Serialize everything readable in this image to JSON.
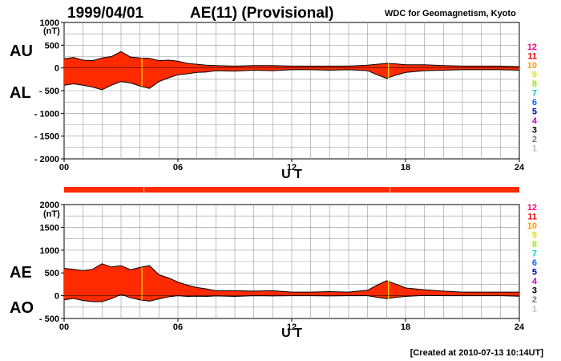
{
  "header": {
    "date": "1999/04/01",
    "title": "AE(11) (Provisional)",
    "source": "WDC for Geomagnetism, Kyoto"
  },
  "footer": {
    "created": "[Created at 2010-07-13 10:14UT]"
  },
  "colors": {
    "fill": "#ff2a00",
    "edge": "#000000",
    "grid": "#999999",
    "marker": "#ffee00"
  },
  "station_legend": [
    {
      "label": "12",
      "color": "#ff0080"
    },
    {
      "label": "11",
      "color": "#e00000"
    },
    {
      "label": "10",
      "color": "#ff9900"
    },
    {
      "label": "9",
      "color": "#e6e600"
    },
    {
      "label": "8",
      "color": "#99ee00"
    },
    {
      "label": "7",
      "color": "#00cccc"
    },
    {
      "label": "6",
      "color": "#0066ff"
    },
    {
      "label": "5",
      "color": "#0000aa"
    },
    {
      "label": "4",
      "color": "#cc00cc"
    },
    {
      "label": "3",
      "color": "#000000"
    },
    {
      "label": "2",
      "color": "#777777"
    },
    {
      "label": "1",
      "color": "#bbbbbb"
    }
  ],
  "chart_data": [
    {
      "type": "area",
      "panel": "AU/AL",
      "upper_label": "AU",
      "lower_label": "AL",
      "unit": "(nT)",
      "xlabel": "U T",
      "x_ticks": [
        "00",
        "06",
        "12",
        "18",
        "24"
      ],
      "y_ticks": [
        "1000",
        "500",
        "0",
        "- 500",
        "- 1000",
        "- 1500",
        "- 2000"
      ],
      "xlim": [
        0,
        24
      ],
      "ylim": [
        -2000,
        1000
      ],
      "grid": true,
      "x": [
        0,
        0.5,
        1,
        1.5,
        2,
        2.5,
        3,
        3.5,
        4,
        4.5,
        5,
        5.5,
        6,
        6.5,
        7,
        7.5,
        8,
        9,
        10,
        11,
        12,
        13,
        14,
        15,
        16,
        16.5,
        17,
        17.5,
        18,
        19,
        20,
        21,
        22,
        23,
        24
      ],
      "series": [
        {
          "name": "AU",
          "values": [
            200,
            230,
            170,
            160,
            220,
            250,
            360,
            240,
            220,
            210,
            160,
            170,
            150,
            100,
            80,
            60,
            50,
            40,
            50,
            50,
            40,
            40,
            40,
            40,
            60,
            80,
            100,
            90,
            70,
            70,
            50,
            40,
            40,
            40,
            30
          ]
        },
        {
          "name": "AL",
          "values": [
            -380,
            -350,
            -380,
            -420,
            -480,
            -380,
            -300,
            -330,
            -400,
            -450,
            -300,
            -220,
            -150,
            -130,
            -100,
            -90,
            -60,
            -70,
            -50,
            -60,
            -40,
            -40,
            -50,
            -40,
            -60,
            -150,
            -230,
            -160,
            -100,
            -60,
            -50,
            -40,
            -40,
            -40,
            -50
          ]
        }
      ]
    },
    {
      "type": "area",
      "panel": "AE/AO",
      "upper_label": "AE",
      "lower_label": "AO",
      "unit": "(nT)",
      "xlabel": "U T",
      "x_ticks": [
        "00",
        "06",
        "12",
        "18",
        "24"
      ],
      "y_ticks": [
        "2000",
        "1500",
        "1000",
        "500",
        "0",
        "- 500"
      ],
      "xlim": [
        0,
        24
      ],
      "ylim": [
        -500,
        2000
      ],
      "grid": true,
      "x": [
        0,
        0.5,
        1,
        1.5,
        2,
        2.5,
        3,
        3.5,
        4,
        4.5,
        5,
        5.5,
        6,
        6.5,
        7,
        7.5,
        8,
        9,
        10,
        11,
        12,
        13,
        14,
        15,
        16,
        16.5,
        17,
        17.5,
        18,
        19,
        20,
        21,
        22,
        23,
        24
      ],
      "series": [
        {
          "name": "AE",
          "values": [
            600,
            580,
            550,
            580,
            700,
            630,
            660,
            570,
            620,
            660,
            460,
            390,
            300,
            230,
            180,
            150,
            110,
            110,
            100,
            110,
            80,
            80,
            90,
            80,
            120,
            230,
            330,
            250,
            170,
            130,
            100,
            80,
            80,
            80,
            80
          ]
        },
        {
          "name": "AO",
          "values": [
            -90,
            -60,
            -105,
            -130,
            -130,
            -65,
            30,
            -45,
            -90,
            -120,
            -70,
            -25,
            0,
            -15,
            -10,
            -15,
            -5,
            -15,
            0,
            -5,
            0,
            0,
            -5,
            0,
            0,
            -35,
            -65,
            -35,
            -15,
            5,
            0,
            0,
            0,
            0,
            -10
          ]
        }
      ]
    }
  ]
}
